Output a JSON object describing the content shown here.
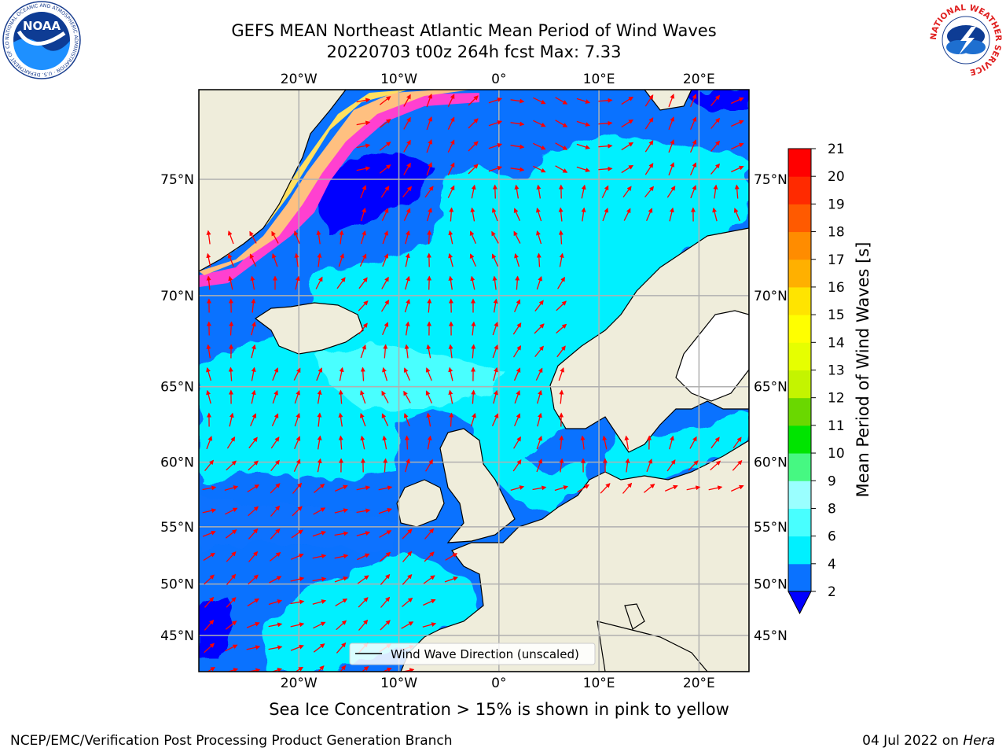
{
  "title": {
    "line1": "GEFS MEAN Northeast Atlantic Mean Period of Wind Waves",
    "line2": "20220703 t00z 264h fcst   Max: 7.33"
  },
  "map": {
    "lon_labels": [
      "20°W",
      "10°W",
      "0°",
      "10°E",
      "20°E"
    ],
    "lon_values": [
      -20,
      -10,
      0,
      10,
      20
    ],
    "lat_labels": [
      "75°N",
      "70°N",
      "65°N",
      "60°N",
      "55°N",
      "50°N",
      "45°N"
    ],
    "lat_values": [
      75,
      70,
      65,
      60,
      55,
      50,
      45
    ],
    "legend_label": "Wind Wave Direction (unscaled)",
    "arrow_color": "#ff0000",
    "land_color": "#efeddb"
  },
  "colorbar": {
    "label": "Mean Period of Wind Waves [s]",
    "ticks": [
      "2",
      "4",
      "6",
      "8",
      "9",
      "10",
      "11",
      "12",
      "13",
      "14",
      "15",
      "16",
      "17",
      "18",
      "19",
      "20",
      "21"
    ],
    "colors": [
      "#0a72ff",
      "#00f0ff",
      "#48ffff",
      "#9affff",
      "#46f882",
      "#00e400",
      "#6ad800",
      "#c4f400",
      "#e6ff00",
      "#ffff00",
      "#ffe400",
      "#ffb000",
      "#ff8c00",
      "#ff5a00",
      "#ff2a00",
      "#ff0000"
    ],
    "extend_color": "#0000ff"
  },
  "caption": "Sea Ice Concentration > 15% is shown in pink to yellow",
  "footer": {
    "left": "NCEP/EMC/Verification Post Processing Product Generation Branch",
    "right_date": "04 Jul 2022 on ",
    "right_host": "Hera"
  },
  "logos": {
    "noaa_text": "NOAA",
    "noaa_ring": "NATIONAL OCEANIC AND ATMOSPHERIC ADMINISTRATION · U.S. DEPARTMENT OF COMMERCE",
    "nws_ring": "NATIONAL WEATHER SERVICE"
  }
}
